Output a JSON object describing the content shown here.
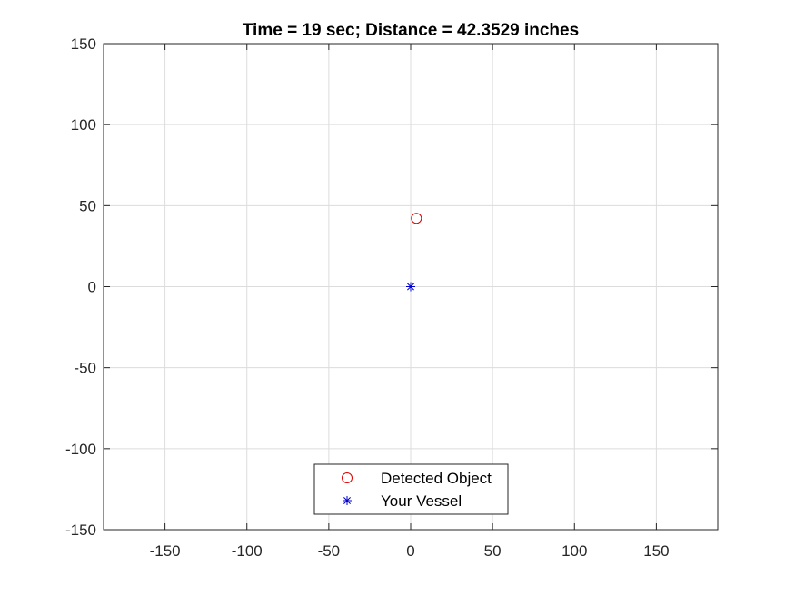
{
  "chart_data": {
    "type": "scatter",
    "title": "Time = 19 sec;  Distance = 42.3529 inches",
    "xlabel": "",
    "ylabel": "",
    "xlim": [
      -187.5,
      187.5
    ],
    "ylim": [
      -150,
      150
    ],
    "xticks": [
      -150,
      -100,
      -50,
      0,
      50,
      100,
      150
    ],
    "yticks": [
      -150,
      -100,
      -50,
      0,
      50,
      100,
      150
    ],
    "xtick_labels": [
      "-150",
      "-100",
      "-50",
      "0",
      "50",
      "100",
      "150"
    ],
    "ytick_labels": [
      "-150",
      "-100",
      "-50",
      "0",
      "50",
      "100",
      "150"
    ],
    "grid": true,
    "legend_position": "bottom-center",
    "series": [
      {
        "name": "Detected Object",
        "marker": "circle",
        "color": "#e00000",
        "x": [
          3.5
        ],
        "y": [
          42.2
        ]
      },
      {
        "name": "Your Vessel",
        "marker": "asterisk",
        "color": "#0000cc",
        "x": [
          0
        ],
        "y": [
          0
        ]
      }
    ]
  }
}
